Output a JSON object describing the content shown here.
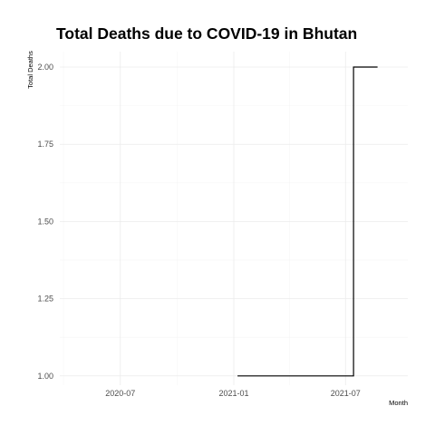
{
  "chart_data": {
    "type": "line",
    "title": "Total Deaths due to COVID-19 in Bhutan",
    "xlabel": "Month",
    "ylabel": "Total Deaths",
    "xlim": [
      "2020-03-25",
      "2021-10-10"
    ],
    "ylim": [
      0.97,
      2.05
    ],
    "x_ticks": [
      {
        "date": "2020-07-01",
        "label": "2020-07"
      },
      {
        "date": "2021-01-01",
        "label": "2021-01"
      },
      {
        "date": "2021-07-01",
        "label": "2021-07"
      }
    ],
    "y_ticks": [
      {
        "value": 1.0,
        "label": "1.00"
      },
      {
        "value": 1.25,
        "label": "1.25"
      },
      {
        "value": 1.5,
        "label": "1.50"
      },
      {
        "value": 1.75,
        "label": "1.75"
      },
      {
        "value": 2.0,
        "label": "2.00"
      }
    ],
    "grid": true,
    "line_color": "#000000",
    "series": [
      {
        "step": true,
        "points": [
          {
            "x": "2021-01-07",
            "y": 1
          },
          {
            "x": "2021-07-14",
            "y": 1
          },
          {
            "x": "2021-07-14",
            "y": 2
          },
          {
            "x": "2021-08-22",
            "y": 2
          }
        ]
      }
    ]
  }
}
